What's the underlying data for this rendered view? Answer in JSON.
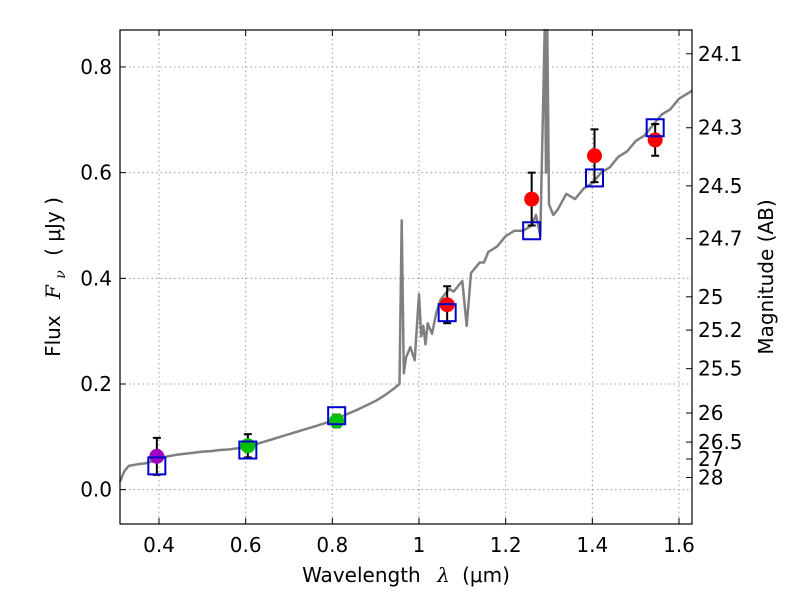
{
  "chart_data": {
    "type": "line",
    "xlabel": "Wavelength",
    "xlabel_symbol": "λ",
    "xlabel_unit": "(μm)",
    "ylabel": "Flux",
    "ylabel_symbol": "F",
    "ylabel_subscript": "ν",
    "ylabel_unit": "( μJy )",
    "y2label": "Magnitude (AB)",
    "xlim": [
      0.31,
      1.63
    ],
    "ylim": [
      -0.065,
      0.87
    ],
    "grid": true,
    "x_ticks": [
      0.4,
      0.6,
      0.8,
      1.0,
      1.2,
      1.4,
      1.6
    ],
    "x_tick_labels": [
      "0.4",
      "0.6",
      "0.8",
      "1",
      "1.2",
      "1.4",
      "1.6"
    ],
    "y_ticks": [
      0.0,
      0.2,
      0.4,
      0.6,
      0.8
    ],
    "y_tick_labels": [
      "0.0",
      "0.2",
      "0.4",
      "0.6",
      "0.8"
    ],
    "magnitude_ticks": [
      {
        "label": "24.1",
        "flux": 0.825
      },
      {
        "label": "24.3",
        "flux": 0.685
      },
      {
        "label": "24.5",
        "flux": 0.575
      },
      {
        "label": "24.7",
        "flux": 0.475
      },
      {
        "label": "25",
        "flux": 0.365
      },
      {
        "label": "25.2",
        "flux": 0.302
      },
      {
        "label": "25.5",
        "flux": 0.229
      },
      {
        "label": "26",
        "flux": 0.145
      },
      {
        "label": "26.5",
        "flux": 0.09
      },
      {
        "label": "27",
        "flux": 0.058
      },
      {
        "label": "28",
        "flux": 0.023
      }
    ],
    "colors": {
      "spectrum": "#808080",
      "model": "#0000cc",
      "error_bar": "#000000",
      "grid": "#9a9a9a"
    },
    "series": [
      {
        "name": "spectrum",
        "kind": "line",
        "x": [
          0.31,
          0.32,
          0.33,
          0.35,
          0.37,
          0.39,
          0.4,
          0.42,
          0.44,
          0.46,
          0.48,
          0.5,
          0.52,
          0.54,
          0.56,
          0.58,
          0.6,
          0.62,
          0.64,
          0.66,
          0.68,
          0.7,
          0.72,
          0.74,
          0.76,
          0.78,
          0.8,
          0.82,
          0.84,
          0.86,
          0.88,
          0.9,
          0.92,
          0.94,
          0.955,
          0.96,
          0.965,
          0.97,
          0.975,
          0.98,
          0.99,
          1.0,
          1.005,
          1.01,
          1.015,
          1.02,
          1.03,
          1.04,
          1.05,
          1.06,
          1.07,
          1.08,
          1.09,
          1.1,
          1.11,
          1.12,
          1.13,
          1.14,
          1.15,
          1.16,
          1.18,
          1.2,
          1.22,
          1.24,
          1.26,
          1.27,
          1.28,
          1.29,
          1.293,
          1.296,
          1.3,
          1.31,
          1.32,
          1.34,
          1.36,
          1.38,
          1.4,
          1.42,
          1.44,
          1.46,
          1.48,
          1.5,
          1.52,
          1.54,
          1.56,
          1.58,
          1.6,
          1.62,
          1.63
        ],
        "values": [
          0.015,
          0.035,
          0.045,
          0.048,
          0.05,
          0.055,
          0.06,
          0.063,
          0.066,
          0.068,
          0.07,
          0.072,
          0.073,
          0.075,
          0.076,
          0.078,
          0.08,
          0.085,
          0.09,
          0.095,
          0.1,
          0.105,
          0.11,
          0.115,
          0.12,
          0.125,
          0.13,
          0.138,
          0.145,
          0.152,
          0.16,
          0.168,
          0.178,
          0.19,
          0.2,
          0.51,
          0.22,
          0.25,
          0.26,
          0.27,
          0.245,
          0.37,
          0.29,
          0.31,
          0.275,
          0.315,
          0.295,
          0.335,
          0.36,
          0.37,
          0.38,
          0.375,
          0.385,
          0.395,
          0.31,
          0.41,
          0.42,
          0.43,
          0.43,
          0.45,
          0.46,
          0.48,
          0.49,
          0.49,
          0.5,
          0.52,
          0.48,
          0.87,
          0.6,
          0.87,
          0.54,
          0.52,
          0.53,
          0.56,
          0.55,
          0.57,
          0.58,
          0.6,
          0.61,
          0.63,
          0.64,
          0.66,
          0.67,
          0.69,
          0.71,
          0.72,
          0.74,
          0.75,
          0.755
        ]
      },
      {
        "name": "model photometry",
        "kind": "open-square",
        "x": [
          0.395,
          0.605,
          0.81,
          1.065,
          1.26,
          1.405,
          1.545
        ],
        "values": [
          0.045,
          0.075,
          0.14,
          0.335,
          0.49,
          0.59,
          0.685
        ]
      },
      {
        "name": "observed photometry",
        "kind": "filled-circle",
        "x": [
          0.395,
          0.605,
          0.81,
          1.065,
          1.26,
          1.405,
          1.545
        ],
        "values": [
          0.063,
          0.083,
          0.13,
          0.35,
          0.55,
          0.632,
          0.662
        ],
        "errors": [
          0.035,
          0.022,
          0.012,
          0.035,
          0.05,
          0.05,
          0.03
        ],
        "colors": [
          "#a000c0",
          "#00c000",
          "#00c000",
          "#ff0000",
          "#ff0000",
          "#ff0000",
          "#ff0000"
        ]
      }
    ]
  }
}
